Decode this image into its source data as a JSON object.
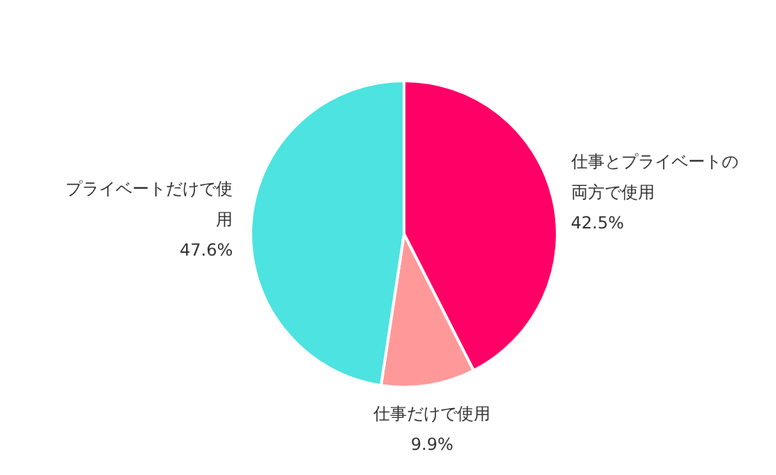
{
  "chart_data": {
    "type": "pie",
    "categories": [
      "仕事とプライベートの両方で使用",
      "仕事だけで使用",
      "プライベートだけで使用"
    ],
    "values": [
      42.5,
      9.9,
      47.6
    ],
    "value_labels": [
      "42.5%",
      "9.9%",
      "47.6%"
    ],
    "colors": [
      "#ff0066",
      "#ff9999",
      "#4de3e0"
    ]
  }
}
